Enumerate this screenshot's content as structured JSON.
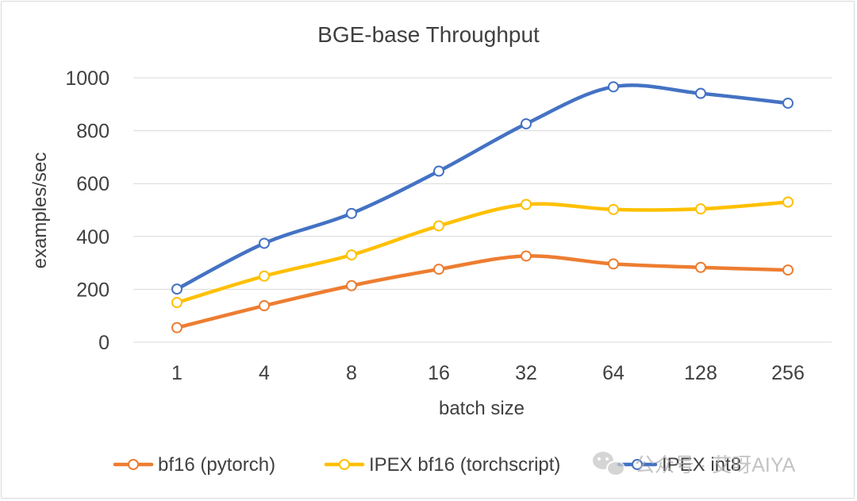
{
  "chart_data": {
    "type": "line",
    "title": "BGE-base Throughput",
    "xlabel": "batch size",
    "ylabel": "examples/sec",
    "categories": [
      "1",
      "4",
      "8",
      "16",
      "32",
      "64",
      "128",
      "256"
    ],
    "ylim": [
      0,
      1000
    ],
    "yticks": [
      0,
      200,
      400,
      600,
      800,
      1000
    ],
    "grid": true,
    "legend_position": "bottom",
    "series": [
      {
        "name": "bf16 (pytorch)",
        "color": "#ed7d31",
        "values": [
          55,
          138,
          214,
          276,
          326,
          296,
          283,
          273
        ]
      },
      {
        "name": "IPEX bf16 (torchscript)",
        "color": "#ffc000",
        "values": [
          150,
          250,
          330,
          440,
          521,
          502,
          504,
          530
        ]
      },
      {
        "name": "IPEX int8",
        "color": "#4472c4",
        "values": [
          201,
          374,
          487,
          647,
          826,
          966,
          941,
          904
        ]
      }
    ]
  },
  "watermark": {
    "text": "公众号 · 艾呀AIYA",
    "icon": "wechat-icon"
  }
}
